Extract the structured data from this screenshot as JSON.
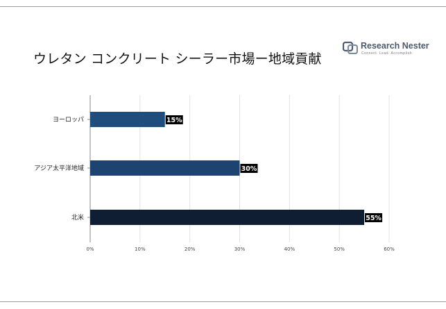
{
  "header": {
    "title": "ウレタン コンクリート シーラー市場ー地域貢献",
    "logo_name": "Research Nester",
    "logo_tagline": "Connect. Lead. Accomplish",
    "logo_icon": "research-nester-logo-icon"
  },
  "chart_data": {
    "type": "bar",
    "orientation": "horizontal",
    "title": "ウレタン コンクリート シーラー市場ー地域貢献",
    "categories": [
      "ヨーロッパ",
      "アジア太平洋地域",
      "北米"
    ],
    "values": [
      15,
      30,
      55
    ],
    "data_labels": [
      "15%",
      "30%",
      "55%"
    ],
    "xlim": [
      0,
      60
    ],
    "x_ticks": [
      "0%",
      "10%",
      "20%",
      "30%",
      "40%",
      "50%",
      "60%"
    ],
    "grid": true,
    "legend": "none",
    "colors": [
      "#1f4e7e",
      "#1d4470",
      "#0f1e33"
    ]
  }
}
